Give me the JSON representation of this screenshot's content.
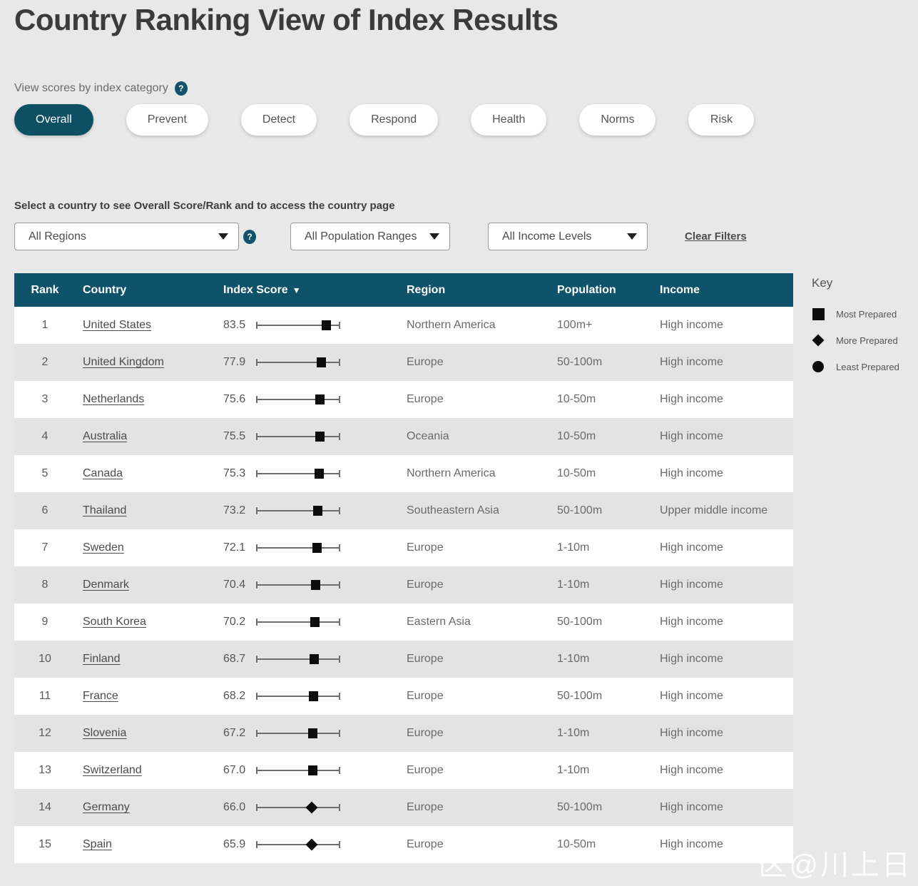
{
  "page": {
    "title": "Country Ranking View of Index Results",
    "watermark": "区@川上日"
  },
  "category_section": {
    "label": "View scores by index category",
    "help_icon": "?",
    "tabs": [
      {
        "label": "Overall",
        "active": true
      },
      {
        "label": "Prevent",
        "active": false
      },
      {
        "label": "Detect",
        "active": false
      },
      {
        "label": "Respond",
        "active": false
      },
      {
        "label": "Health",
        "active": false
      },
      {
        "label": "Norms",
        "active": false
      },
      {
        "label": "Risk",
        "active": false
      }
    ]
  },
  "filters": {
    "instruction": "Select a country to see Overall Score/Rank and to access the country page",
    "region_value": "All Regions",
    "help_icon": "?",
    "population_value": "All Population Ranges",
    "income_value": "All Income Levels",
    "clear_label": "Clear Filters"
  },
  "key": {
    "title": "Key",
    "items": [
      {
        "shape": "square",
        "label": "Most Prepared"
      },
      {
        "shape": "diamond",
        "label": "More Prepared"
      },
      {
        "shape": "circle",
        "label": "Least Prepared"
      }
    ]
  },
  "table": {
    "columns": {
      "rank": "Rank",
      "country": "Country",
      "score": "Index Score",
      "region": "Region",
      "population": "Population",
      "income": "Income"
    },
    "sort_icon": "▼",
    "scale_max": 100,
    "rows": [
      {
        "rank": "1",
        "country": "United States",
        "score": "83.5",
        "marker": "square",
        "region": "Northern America",
        "population": "100m+",
        "income": "High income"
      },
      {
        "rank": "2",
        "country": "United Kingdom",
        "score": "77.9",
        "marker": "square",
        "region": "Europe",
        "population": "50-100m",
        "income": "High income"
      },
      {
        "rank": "3",
        "country": "Netherlands",
        "score": "75.6",
        "marker": "square",
        "region": "Europe",
        "population": "10-50m",
        "income": "High income"
      },
      {
        "rank": "4",
        "country": "Australia",
        "score": "75.5",
        "marker": "square",
        "region": "Oceania",
        "population": "10-50m",
        "income": "High income"
      },
      {
        "rank": "5",
        "country": "Canada",
        "score": "75.3",
        "marker": "square",
        "region": "Northern America",
        "population": "10-50m",
        "income": "High income"
      },
      {
        "rank": "6",
        "country": "Thailand",
        "score": "73.2",
        "marker": "square",
        "region": "Southeastern Asia",
        "population": "50-100m",
        "income": "Upper middle income"
      },
      {
        "rank": "7",
        "country": "Sweden",
        "score": "72.1",
        "marker": "square",
        "region": "Europe",
        "population": "1-10m",
        "income": "High income"
      },
      {
        "rank": "8",
        "country": "Denmark",
        "score": "70.4",
        "marker": "square",
        "region": "Europe",
        "population": "1-10m",
        "income": "High income"
      },
      {
        "rank": "9",
        "country": "South Korea",
        "score": "70.2",
        "marker": "square",
        "region": "Eastern Asia",
        "population": "50-100m",
        "income": "High income"
      },
      {
        "rank": "10",
        "country": "Finland",
        "score": "68.7",
        "marker": "square",
        "region": "Europe",
        "population": "1-10m",
        "income": "High income"
      },
      {
        "rank": "11",
        "country": "France",
        "score": "68.2",
        "marker": "square",
        "region": "Europe",
        "population": "50-100m",
        "income": "High income"
      },
      {
        "rank": "12",
        "country": "Slovenia",
        "score": "67.2",
        "marker": "square",
        "region": "Europe",
        "population": "1-10m",
        "income": "High income"
      },
      {
        "rank": "13",
        "country": "Switzerland",
        "score": "67.0",
        "marker": "square",
        "region": "Europe",
        "population": "1-10m",
        "income": "High income"
      },
      {
        "rank": "14",
        "country": "Germany",
        "score": "66.0",
        "marker": "diamond",
        "region": "Europe",
        "population": "50-100m",
        "income": "High income"
      },
      {
        "rank": "15",
        "country": "Spain",
        "score": "65.9",
        "marker": "diamond",
        "region": "Europe",
        "population": "10-50m",
        "income": "High income"
      }
    ]
  },
  "colors": {
    "teal": "#0e5369",
    "page_bg": "#e8e8e8",
    "row_alt_bg": "#e3e3e3",
    "marker_black": "#0d0d0d"
  }
}
